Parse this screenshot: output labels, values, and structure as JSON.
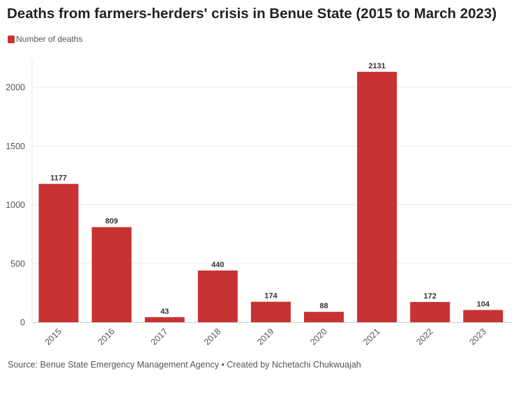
{
  "chart_data": {
    "type": "bar",
    "title": "Deaths from farmers-herders' crisis in Benue State (2015 to March 2023)",
    "categories": [
      "2015",
      "2016",
      "2017",
      "2018",
      "2019",
      "2020",
      "2021",
      "2022",
      "2023"
    ],
    "series": [
      {
        "name": "Number of deaths",
        "values": [
          1177,
          809,
          43,
          440,
          174,
          88,
          2131,
          172,
          104
        ],
        "color": "#c83232"
      }
    ],
    "ylim": [
      0,
      2250
    ],
    "yticks": [
      0,
      500,
      1000,
      1500,
      2000
    ],
    "grid": true,
    "legend": "top-left",
    "data_labels": true
  },
  "source": "Source: Benue State Emergency Management Agency • Created by Nchetachi Chukwuajah"
}
